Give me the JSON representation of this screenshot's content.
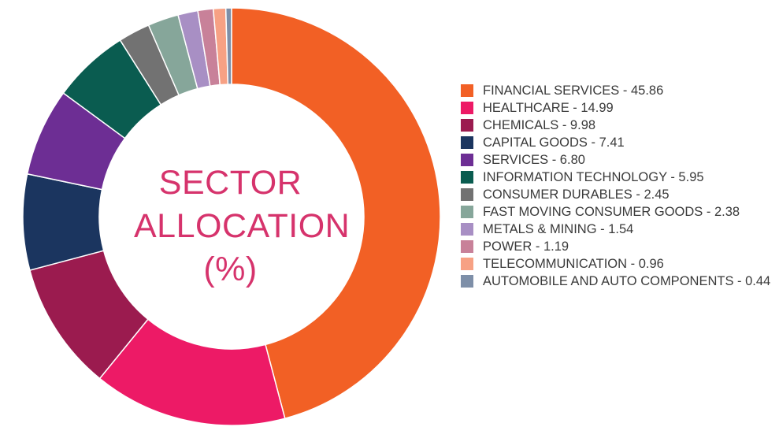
{
  "chart_data": {
    "type": "pie",
    "title": "SECTOR ALLOCATION (%)",
    "title_lines": [
      "SECTOR",
      "ALLOCATION",
      "(%)"
    ],
    "legend_position": "right",
    "slices": [
      {
        "label": "FINANCIAL SERVICES",
        "value": 45.86,
        "display": "FINANCIAL SERVICES - 45.86",
        "color": "#f26025"
      },
      {
        "label": "HEALTHCARE",
        "value": 14.99,
        "display": "HEALTHCARE - 14.99",
        "color": "#ed1a66"
      },
      {
        "label": "CHEMICALS",
        "value": 9.98,
        "display": "CHEMICALS - 9.98",
        "color": "#9b1b4f"
      },
      {
        "label": "CAPITAL GOODS",
        "value": 7.41,
        "display": "CAPITAL GOODS - 7.41",
        "color": "#1b355f"
      },
      {
        "label": "SERVICES",
        "value": 6.8,
        "display": "SERVICES - 6.80",
        "color": "#6d2e94"
      },
      {
        "label": "INFORMATION TECHNOLOGY",
        "value": 5.95,
        "display": "INFORMATION TECHNOLOGY - 5.95",
        "color": "#0a5c50"
      },
      {
        "label": "CONSUMER DURABLES",
        "value": 2.45,
        "display": "CONSUMER DURABLES - 2.45",
        "color": "#727272"
      },
      {
        "label": "FAST MOVING CONSUMER GOODS",
        "value": 2.38,
        "display": "FAST MOVING CONSUMER GOODS - 2.38",
        "color": "#86a69a"
      },
      {
        "label": "METALS & MINING",
        "value": 1.54,
        "display": "METALS & MINING - 1.54",
        "color": "#a88fc4"
      },
      {
        "label": "POWER",
        "value": 1.19,
        "display": "POWER - 1.19",
        "color": "#c88199"
      },
      {
        "label": "TELECOMMUNICATION",
        "value": 0.96,
        "display": "TELECOMMUNICATION - 0.96",
        "color": "#f7a184"
      },
      {
        "label": "AUTOMOBILE AND AUTO COMPONENTS",
        "value": 0.44,
        "display": "AUTOMOBILE AND AUTO COMPONENTS - 0.44",
        "color": "#7e8fa8"
      }
    ]
  }
}
